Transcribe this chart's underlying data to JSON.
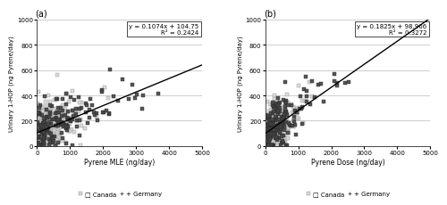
{
  "panel_a": {
    "xlabel": "Pyrene MLE (ng/day)",
    "ylabel": "Urinary 1-HOP (ng Pyrene/day)",
    "equation": "y = 0.1074x + 104.75",
    "r2": "R² = 0.2424",
    "slope": 0.1074,
    "intercept": 104.75,
    "xlim": [
      0,
      5000
    ],
    "ylim": [
      0,
      1000
    ],
    "xticks": [
      0,
      1000,
      2000,
      3000,
      4000,
      5000
    ],
    "yticks": [
      0,
      200,
      400,
      600,
      800,
      1000
    ],
    "label": "(a)",
    "x_scale_canada": 400,
    "x_scale_germany": 700,
    "n_canada": 280,
    "n_germany": 180
  },
  "panel_b": {
    "xlabel": "Pyrene Dose (ng/day)",
    "ylabel": "Urinary 1-HOP (ng Pyrene/day)",
    "equation": "y = 0.1825x + 98.966",
    "r2": "R² = 0.3272",
    "slope": 0.1825,
    "intercept": 98.966,
    "xlim": [
      0,
      5000
    ],
    "ylim": [
      0,
      1000
    ],
    "xticks": [
      0,
      1000,
      2000,
      3000,
      4000,
      5000
    ],
    "yticks": [
      0,
      200,
      400,
      600,
      800,
      1000
    ],
    "label": "(b)",
    "x_scale_canada": 300,
    "x_scale_germany": 500,
    "n_canada": 250,
    "n_germany": 180
  },
  "canada_marker": "s",
  "germany_marker": "P",
  "canada_face": "#d8d8d8",
  "canada_edge": "#888888",
  "germany_face": "#444444",
  "germany_edge": "#222222",
  "line_color": "#000000",
  "background_color": "#ffffff",
  "grid_color": "#aaaaaa",
  "seed": 12345,
  "marker_size": 5,
  "noise_scale": 100
}
